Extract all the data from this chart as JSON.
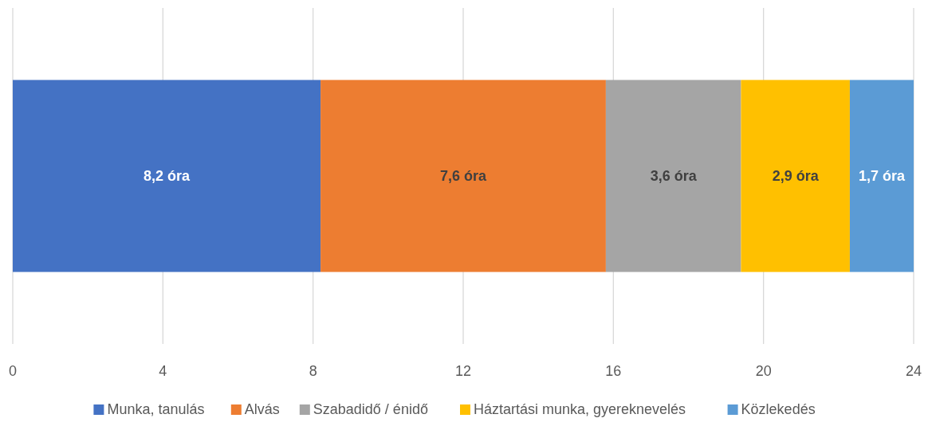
{
  "chart_data": {
    "type": "bar",
    "orientation": "horizontal",
    "stacked": true,
    "categories": [
      null
    ],
    "series": [
      {
        "name": "Munka, tanulás",
        "color": "#4472c4",
        "values": [
          8.2
        ],
        "value_labels": [
          "8,2 óra"
        ]
      },
      {
        "name": "Alvás",
        "color": "#ed7d31",
        "values": [
          7.6
        ],
        "value_labels": [
          "7,6 óra"
        ]
      },
      {
        "name": "Szabadidő / énidő",
        "color": "#a5a5a5",
        "values": [
          3.6
        ],
        "value_labels": [
          "3,6 óra"
        ]
      },
      {
        "name": "Háztartási munka, gyereknevelés",
        "color": "#ffc000",
        "values": [
          2.9
        ],
        "value_labels": [
          "2,9 óra"
        ]
      },
      {
        "name": "Közlekedés",
        "color": "#5b9bd5",
        "values": [
          1.7
        ],
        "value_labels": [
          "1,7 óra"
        ]
      }
    ],
    "xlim": [
      0,
      24
    ],
    "xticks": [
      0,
      4,
      8,
      12,
      16,
      20,
      24
    ],
    "grid": "x",
    "legend": "bottom"
  }
}
